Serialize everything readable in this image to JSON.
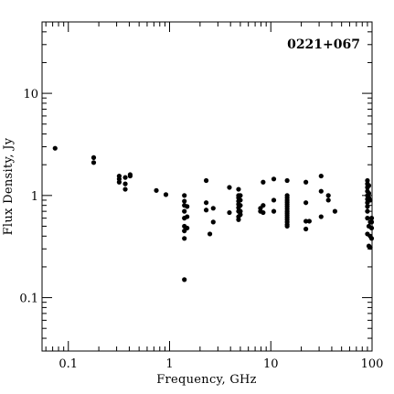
{
  "chart_data": {
    "type": "scatter",
    "title": "",
    "annotation": "0221+067",
    "xlabel": "Frequency, GHz",
    "ylabel": "Flux Density, Jy",
    "x_scale": "log",
    "y_scale": "log",
    "xlim": [
      0.055,
      100
    ],
    "ylim": [
      0.03,
      50
    ],
    "x_ticks": [
      {
        "value": 0.1,
        "label": "0.1"
      },
      {
        "value": 1,
        "label": "1"
      },
      {
        "value": 10,
        "label": "10"
      },
      {
        "value": 100,
        "label": "100"
      }
    ],
    "y_ticks": [
      {
        "value": 0.1,
        "label": "0.1"
      },
      {
        "value": 1,
        "label": "1"
      },
      {
        "value": 10,
        "label": "10"
      }
    ],
    "grid": false,
    "legend": "none",
    "marker_color": "#000000",
    "points": [
      [
        0.074,
        2.9
      ],
      [
        0.178,
        2.35
      ],
      [
        0.178,
        2.1
      ],
      [
        0.318,
        1.55
      ],
      [
        0.318,
        1.45
      ],
      [
        0.318,
        1.35
      ],
      [
        0.365,
        1.5
      ],
      [
        0.365,
        1.3
      ],
      [
        0.365,
        1.15
      ],
      [
        0.408,
        1.6
      ],
      [
        0.408,
        1.55
      ],
      [
        0.74,
        1.12
      ],
      [
        0.92,
        1.02
      ],
      [
        1.4,
        1.0
      ],
      [
        1.4,
        0.88
      ],
      [
        1.4,
        0.8
      ],
      [
        1.4,
        0.7
      ],
      [
        1.4,
        0.6
      ],
      [
        1.4,
        0.5
      ],
      [
        1.4,
        0.45
      ],
      [
        1.4,
        0.38
      ],
      [
        1.4,
        0.15
      ],
      [
        1.49,
        0.78
      ],
      [
        1.49,
        0.62
      ],
      [
        1.49,
        0.48
      ],
      [
        2.3,
        1.4
      ],
      [
        2.3,
        0.85
      ],
      [
        2.3,
        0.72
      ],
      [
        2.5,
        0.42
      ],
      [
        2.7,
        0.75
      ],
      [
        2.7,
        0.55
      ],
      [
        3.9,
        1.2
      ],
      [
        3.9,
        0.68
      ],
      [
        4.8,
        1.15
      ],
      [
        4.8,
        1.0
      ],
      [
        4.8,
        0.95
      ],
      [
        4.8,
        0.88
      ],
      [
        4.8,
        0.82
      ],
      [
        4.8,
        0.76
      ],
      [
        4.8,
        0.7
      ],
      [
        4.8,
        0.62
      ],
      [
        4.8,
        0.58
      ],
      [
        5.0,
        1.0
      ],
      [
        5.0,
        0.9
      ],
      [
        5.0,
        0.8
      ],
      [
        5.0,
        0.7
      ],
      [
        5.0,
        0.65
      ],
      [
        7.9,
        0.75
      ],
      [
        7.9,
        0.7
      ],
      [
        8.4,
        1.35
      ],
      [
        8.4,
        0.8
      ],
      [
        8.4,
        0.68
      ],
      [
        10.7,
        1.45
      ],
      [
        10.7,
        0.9
      ],
      [
        10.7,
        0.7
      ],
      [
        14.5,
        1.4
      ],
      [
        14.5,
        1.0
      ],
      [
        14.5,
        0.95
      ],
      [
        14.5,
        0.9
      ],
      [
        14.5,
        0.86
      ],
      [
        14.5,
        0.82
      ],
      [
        14.5,
        0.78
      ],
      [
        14.5,
        0.74
      ],
      [
        14.5,
        0.7
      ],
      [
        14.5,
        0.67
      ],
      [
        14.5,
        0.64
      ],
      [
        14.5,
        0.61
      ],
      [
        14.5,
        0.58
      ],
      [
        14.5,
        0.55
      ],
      [
        14.5,
        0.52
      ],
      [
        14.5,
        0.5
      ],
      [
        22.2,
        1.35
      ],
      [
        22.2,
        0.85
      ],
      [
        22.2,
        0.56
      ],
      [
        22.2,
        0.47
      ],
      [
        24.0,
        0.56
      ],
      [
        31.4,
        1.55
      ],
      [
        31.4,
        1.1
      ],
      [
        31.4,
        0.62
      ],
      [
        37.0,
        1.0
      ],
      [
        37.0,
        0.9
      ],
      [
        43.0,
        0.7
      ],
      [
        90,
        1.4
      ],
      [
        90,
        1.3
      ],
      [
        90,
        1.2
      ],
      [
        90,
        1.1
      ],
      [
        90,
        1.0
      ],
      [
        90,
        0.92
      ],
      [
        90,
        0.85
      ],
      [
        90,
        0.78
      ],
      [
        90,
        0.7
      ],
      [
        90,
        0.6
      ],
      [
        90,
        0.42
      ],
      [
        93,
        1.25
      ],
      [
        93,
        1.05
      ],
      [
        93,
        0.95
      ],
      [
        93,
        0.5
      ],
      [
        93,
        0.32
      ],
      [
        96,
        0.9
      ],
      [
        96,
        0.55
      ],
      [
        96,
        0.4
      ],
      [
        96,
        0.31
      ],
      [
        99,
        0.6
      ],
      [
        99,
        0.55
      ],
      [
        99,
        0.48
      ],
      [
        99,
        0.38
      ]
    ]
  }
}
